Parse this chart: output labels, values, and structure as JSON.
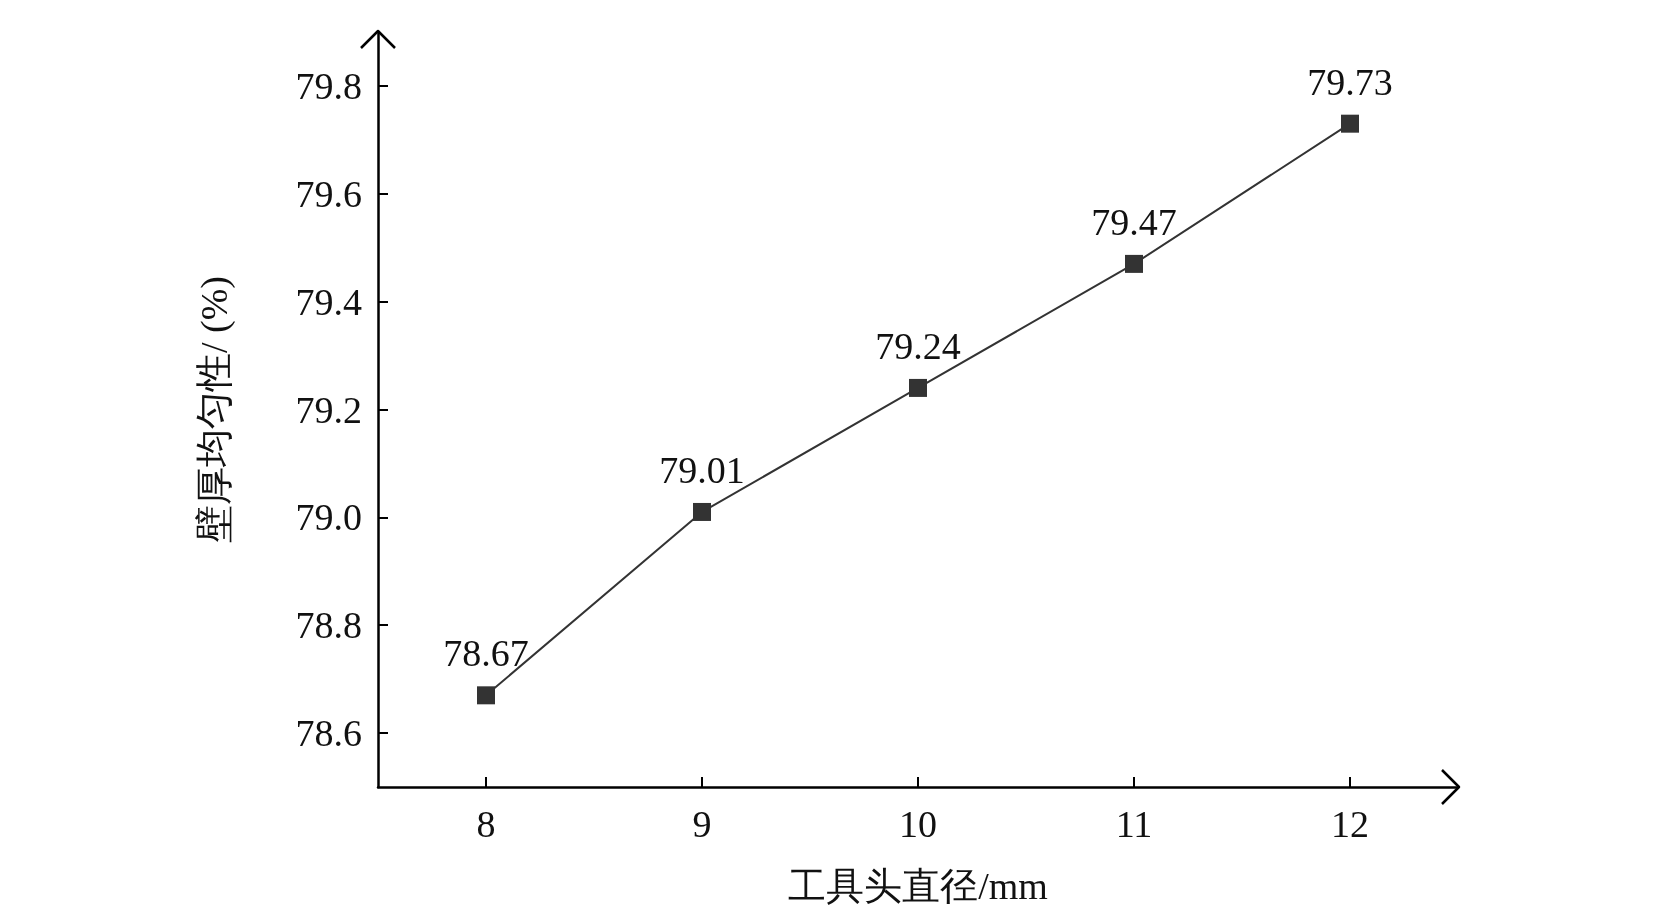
{
  "chart_data": {
    "type": "line",
    "xlabel": "工具头直径/mm",
    "ylabel": "壁厚均匀性/ (%)",
    "x": [
      8,
      9,
      10,
      11,
      12
    ],
    "series": [
      {
        "color": "#333333",
        "values": [
          78.67,
          79.01,
          79.24,
          79.47,
          79.73
        ]
      }
    ],
    "xlim": [
      7.5,
      12.5
    ],
    "xticks": [
      8,
      9,
      10,
      11,
      12
    ],
    "ylim": [
      78.5,
      79.9
    ],
    "yticks": [
      78.6,
      78.8,
      {
        "value": 79,
        "label": "79.0"
      },
      79.2,
      79.4,
      79.6,
      79.8
    ],
    "marker": "square",
    "line_style": "solid",
    "data_labels": true,
    "grid": false
  }
}
